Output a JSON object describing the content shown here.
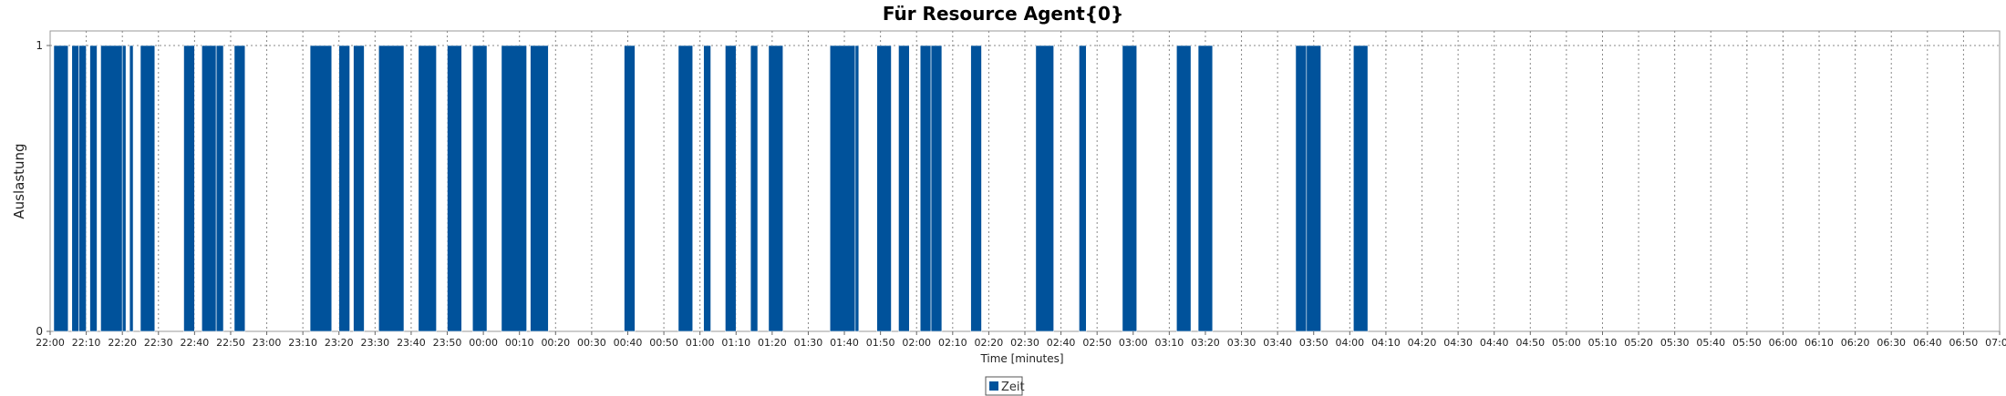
{
  "chart_data": {
    "type": "bar",
    "title": "Für Resource Agent{0}",
    "xlabel": "Time [minutes]",
    "ylabel": "Auslastung",
    "ylim": [
      0,
      1
    ],
    "yticks": [
      "0",
      "1"
    ],
    "x_start": "22:00",
    "x_end": "07:00",
    "xticks": [
      "22:00",
      "22:10",
      "22:20",
      "22:30",
      "22:40",
      "22:50",
      "23:00",
      "23:10",
      "23:20",
      "23:30",
      "23:40",
      "23:50",
      "00:00",
      "00:10",
      "00:20",
      "00:30",
      "00:40",
      "00:50",
      "01:00",
      "01:10",
      "01:20",
      "01:30",
      "01:40",
      "01:50",
      "02:00",
      "02:10",
      "02:20",
      "02:30",
      "02:40",
      "02:50",
      "03:00",
      "03:10",
      "03:20",
      "03:30",
      "03:40",
      "03:50",
      "04:00",
      "04:10",
      "04:20",
      "04:30",
      "04:40",
      "04:50",
      "05:00",
      "05:10",
      "05:20",
      "05:30",
      "05:40",
      "05:50",
      "06:00",
      "06:10",
      "06:20",
      "06:30",
      "06:40",
      "06:50",
      "07:00"
    ],
    "grid": true,
    "legend": "bottom",
    "series": [
      {
        "name": "Zeit",
        "color": "#00529b",
        "bars": [
          {
            "start": "22:01",
            "end": "22:05",
            "value": 1
          },
          {
            "start": "22:06",
            "end": "22:08",
            "value": 1
          },
          {
            "start": "22:08",
            "end": "22:10",
            "value": 1
          },
          {
            "start": "22:11",
            "end": "22:13",
            "value": 1
          },
          {
            "start": "22:14",
            "end": "22:20",
            "value": 1
          },
          {
            "start": "22:20",
            "end": "22:21",
            "value": 1
          },
          {
            "start": "22:22",
            "end": "22:23",
            "value": 1
          },
          {
            "start": "22:25",
            "end": "22:29",
            "value": 1
          },
          {
            "start": "22:37",
            "end": "22:40",
            "value": 1
          },
          {
            "start": "22:42",
            "end": "22:46",
            "value": 1
          },
          {
            "start": "22:46",
            "end": "22:48",
            "value": 1
          },
          {
            "start": "22:51",
            "end": "22:54",
            "value": 1
          },
          {
            "start": "23:12",
            "end": "23:18",
            "value": 1
          },
          {
            "start": "23:20",
            "end": "23:23",
            "value": 1
          },
          {
            "start": "23:24",
            "end": "23:27",
            "value": 1
          },
          {
            "start": "23:31",
            "end": "23:38",
            "value": 1
          },
          {
            "start": "23:42",
            "end": "23:47",
            "value": 1
          },
          {
            "start": "23:50",
            "end": "23:54",
            "value": 1
          },
          {
            "start": "23:57",
            "end": "24:01",
            "value": 1
          },
          {
            "start": "24:05",
            "end": "24:12",
            "value": 1
          },
          {
            "start": "24:13",
            "end": "24:18",
            "value": 1
          },
          {
            "start": "24:39",
            "end": "24:42",
            "value": 1
          },
          {
            "start": "24:54",
            "end": "24:58",
            "value": 1
          },
          {
            "start": "25:01",
            "end": "25:03",
            "value": 1
          },
          {
            "start": "25:07",
            "end": "25:10",
            "value": 1
          },
          {
            "start": "25:14",
            "end": "25:16",
            "value": 1
          },
          {
            "start": "25:19",
            "end": "25:23",
            "value": 1
          },
          {
            "start": "25:36",
            "end": "25:43",
            "value": 1
          },
          {
            "start": "25:43",
            "end": "25:44",
            "value": 1
          },
          {
            "start": "25:49",
            "end": "25:53",
            "value": 1
          },
          {
            "start": "25:55",
            "end": "25:58",
            "value": 1
          },
          {
            "start": "26:01",
            "end": "26:04",
            "value": 1
          },
          {
            "start": "26:04",
            "end": "26:07",
            "value": 1
          },
          {
            "start": "26:15",
            "end": "26:18",
            "value": 1
          },
          {
            "start": "26:33",
            "end": "26:38",
            "value": 1
          },
          {
            "start": "26:45",
            "end": "26:47",
            "value": 1
          },
          {
            "start": "26:57",
            "end": "27:01",
            "value": 1
          },
          {
            "start": "27:12",
            "end": "27:16",
            "value": 1
          },
          {
            "start": "27:18",
            "end": "27:22",
            "value": 1
          },
          {
            "start": "27:45",
            "end": "27:48",
            "value": 1
          },
          {
            "start": "27:48",
            "end": "27:52",
            "value": 1
          },
          {
            "start": "28:01",
            "end": "28:05",
            "value": 1
          }
        ]
      }
    ]
  }
}
